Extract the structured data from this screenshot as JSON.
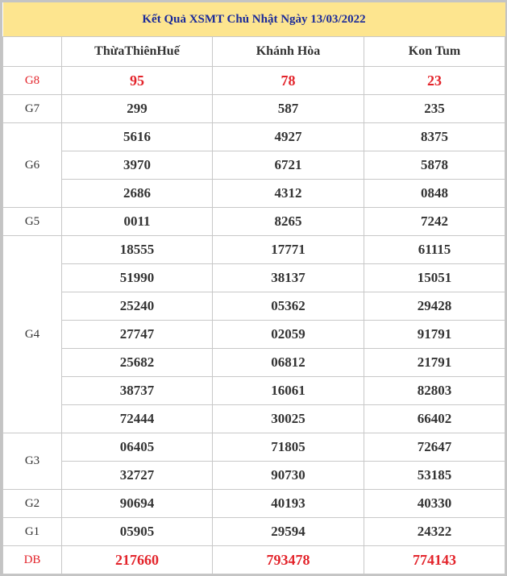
{
  "title": "Kết Quả XSMT Chủ Nhật Ngày 13/03/2022",
  "columns": [
    "ThừaThiênHuế",
    "Khánh Hòa",
    "Kon Tum"
  ],
  "colors": {
    "title_bg": "#fde58f",
    "title_text": "#1a2a9a",
    "highlight": "#e3242b",
    "text": "#333333"
  },
  "prizes": [
    {
      "label": "G8",
      "highlight": true,
      "rows": [
        [
          "95",
          "78",
          "23"
        ]
      ]
    },
    {
      "label": "G7",
      "rows": [
        [
          "299",
          "587",
          "235"
        ]
      ]
    },
    {
      "label": "G6",
      "rows": [
        [
          "5616",
          "4927",
          "8375"
        ],
        [
          "3970",
          "6721",
          "5878"
        ],
        [
          "2686",
          "4312",
          "0848"
        ]
      ]
    },
    {
      "label": "G5",
      "rows": [
        [
          "0011",
          "8265",
          "7242"
        ]
      ]
    },
    {
      "label": "G4",
      "rows": [
        [
          "18555",
          "17771",
          "61115"
        ],
        [
          "51990",
          "38137",
          "15051"
        ],
        [
          "25240",
          "05362",
          "29428"
        ],
        [
          "27747",
          "02059",
          "91791"
        ],
        [
          "25682",
          "06812",
          "21791"
        ],
        [
          "38737",
          "16061",
          "82803"
        ],
        [
          "72444",
          "30025",
          "66402"
        ]
      ]
    },
    {
      "label": "G3",
      "rows": [
        [
          "06405",
          "71805",
          "72647"
        ],
        [
          "32727",
          "90730",
          "53185"
        ]
      ]
    },
    {
      "label": "G2",
      "rows": [
        [
          "90694",
          "40193",
          "40330"
        ]
      ]
    },
    {
      "label": "G1",
      "rows": [
        [
          "05905",
          "29594",
          "24322"
        ]
      ]
    },
    {
      "label": "DB",
      "highlight": true,
      "rows": [
        [
          "217660",
          "793478",
          "774143"
        ]
      ]
    }
  ]
}
